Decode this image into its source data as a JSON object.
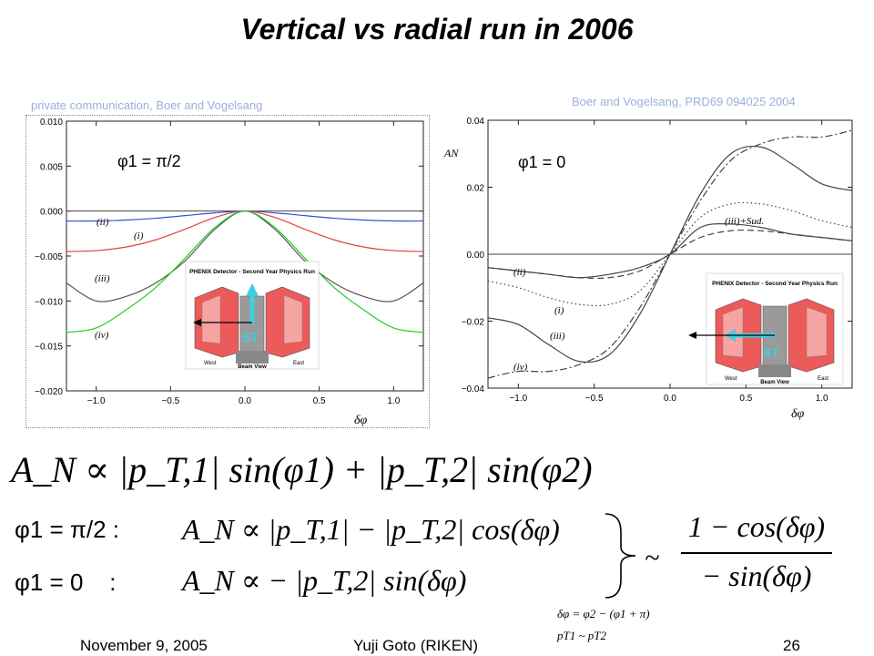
{
  "slide": {
    "title": "Vertical vs radial run in 2006",
    "footer": {
      "date": "November 9, 2005",
      "author": "Yuji Goto (RIKEN)",
      "page": "26"
    }
  },
  "left_panel": {
    "credit": "private communication, Boer and Vogelsang",
    "condition": "φ1 = π/2",
    "x_axis_label": "δφ",
    "curve_labels": [
      "(ii)",
      "(i)",
      "(iii)",
      "(iv)"
    ],
    "inset_title": "PHENIX Detector - Second Year Physics Run",
    "inset_caption": "Beam View",
    "inset_west": "West",
    "inset_east": "East",
    "spin_label": "ST"
  },
  "right_panel": {
    "credit": "Boer and Vogelsang, PRD69 094025 2004",
    "condition": "φ1 = 0",
    "y_axis_label": "AN",
    "x_axis_label": "δφ",
    "curve_labels": [
      "(ii)",
      "(i)",
      "(iii)",
      "(iv)",
      "(iii)+Sud."
    ],
    "inset_title": "PHENIX Detector - Second Year Physics Run",
    "inset_caption": "Beam View",
    "inset_west": "West",
    "inset_east": "East",
    "spin_label": "ST"
  },
  "equations": {
    "main": "A_N ∝ |p_T,1| sin(φ1) + |p_T,2| sin(φ2)",
    "case1_label": "φ1 = π/2 :",
    "case1": "A_N ∝ |p_T,1| − |p_T,2| cos(δφ)",
    "case2_label": "φ1 = 0    :",
    "case2": "A_N ∝ − |p_T,2| sin(δφ)",
    "ratio_numerator": "1 − cos(δφ)",
    "ratio_denominator": "− sin(δφ)",
    "note1": "δφ = φ2 − (φ1 + π)",
    "note2": "pT1 ~ pT2"
  },
  "chart_data": [
    {
      "type": "line",
      "title": "",
      "xlabel": "δφ",
      "ylabel": "",
      "xlim": [
        -1.2,
        1.2
      ],
      "ylim": [
        -0.02,
        0.01
      ],
      "x_ticks": [
        -1.0,
        -0.5,
        0.0,
        0.5,
        1.0
      ],
      "y_ticks": [
        0.01,
        0.005,
        0.0,
        -0.005,
        -0.01,
        -0.015,
        -0.02
      ],
      "grid": false,
      "series": [
        {
          "name": "(ii)",
          "color": "#3b4fd8",
          "x": [
            -1.2,
            -1.0,
            -0.8,
            -0.6,
            -0.4,
            -0.2,
            0,
            0.2,
            0.4,
            0.6,
            0.8,
            1.0,
            1.2
          ],
          "y": [
            -0.0011,
            -0.0011,
            -0.001,
            -0.0008,
            -0.0005,
            -0.0002,
            0,
            -0.0002,
            -0.0005,
            -0.0008,
            -0.001,
            -0.0011,
            -0.0011
          ]
        },
        {
          "name": "(i)",
          "color": "#e04040",
          "x": [
            -1.2,
            -1.0,
            -0.8,
            -0.6,
            -0.4,
            -0.2,
            0,
            0.2,
            0.4,
            0.6,
            0.8,
            1.0,
            1.2
          ],
          "y": [
            -0.0045,
            -0.0044,
            -0.004,
            -0.0032,
            -0.002,
            -0.0007,
            0,
            -0.0007,
            -0.002,
            -0.0032,
            -0.004,
            -0.0044,
            -0.0045
          ]
        },
        {
          "name": "(iii)",
          "color": "#555555",
          "x": [
            -1.2,
            -1.0,
            -0.8,
            -0.6,
            -0.4,
            -0.2,
            0,
            0.2,
            0.4,
            0.6,
            0.8,
            1.0,
            1.2
          ],
          "y": [
            -0.008,
            -0.01,
            -0.0095,
            -0.008,
            -0.0055,
            -0.002,
            0,
            -0.002,
            -0.0055,
            -0.008,
            -0.0095,
            -0.01,
            -0.008
          ]
        },
        {
          "name": "(iv)",
          "color": "#22cc22",
          "x": [
            -1.2,
            -1.0,
            -0.8,
            -0.6,
            -0.4,
            -0.2,
            0,
            0.2,
            0.4,
            0.6,
            0.8,
            1.0,
            1.2
          ],
          "y": [
            -0.0135,
            -0.013,
            -0.011,
            -0.0085,
            -0.0052,
            -0.0018,
            0,
            -0.0018,
            -0.0052,
            -0.0085,
            -0.011,
            -0.013,
            -0.0135
          ]
        }
      ]
    },
    {
      "type": "line",
      "title": "",
      "xlabel": "δφ",
      "ylabel": "AN",
      "xlim": [
        -1.2,
        1.2
      ],
      "ylim": [
        -0.04,
        0.04
      ],
      "x_ticks": [
        -1.0,
        -0.5,
        0.0,
        0.5,
        1.0
      ],
      "y_ticks": [
        0.04,
        0.02,
        0.0,
        -0.02,
        -0.04
      ],
      "grid": false,
      "series": [
        {
          "name": "(ii)",
          "style": "dashed",
          "x": [
            -1.2,
            -1.0,
            -0.8,
            -0.6,
            -0.4,
            -0.2,
            0,
            0.2,
            0.4,
            0.6,
            0.8,
            1.0,
            1.2
          ],
          "y": [
            -0.004,
            -0.005,
            -0.006,
            -0.007,
            -0.007,
            -0.005,
            0,
            0.005,
            0.007,
            0.007,
            0.006,
            0.005,
            0.004
          ]
        },
        {
          "name": "(i)",
          "style": "dotted",
          "x": [
            -1.2,
            -1.0,
            -0.8,
            -0.6,
            -0.4,
            -0.2,
            0,
            0.2,
            0.4,
            0.6,
            0.8,
            1.0,
            1.2
          ],
          "y": [
            -0.008,
            -0.01,
            -0.013,
            -0.015,
            -0.015,
            -0.011,
            0,
            0.011,
            0.015,
            0.015,
            0.013,
            0.01,
            0.008
          ]
        },
        {
          "name": "(iii)",
          "style": "solid",
          "x": [
            -1.2,
            -1.0,
            -0.8,
            -0.6,
            -0.4,
            -0.2,
            0,
            0.2,
            0.4,
            0.6,
            0.8,
            1.0,
            1.2
          ],
          "y": [
            -0.019,
            -0.021,
            -0.027,
            -0.032,
            -0.03,
            -0.018,
            0,
            0.018,
            0.03,
            0.032,
            0.027,
            0.021,
            0.019
          ]
        },
        {
          "name": "(iv)",
          "style": "dashdot",
          "x": [
            -1.2,
            -1.0,
            -0.8,
            -0.6,
            -0.4,
            -0.2,
            0,
            0.2,
            0.4,
            0.6,
            0.8,
            1.0,
            1.2
          ],
          "y": [
            -0.037,
            -0.035,
            -0.035,
            -0.033,
            -0.028,
            -0.016,
            0,
            0.016,
            0.028,
            0.033,
            0.035,
            0.035,
            0.037
          ]
        },
        {
          "name": "(iii)+Sud.",
          "style": "solid",
          "x": [
            -1.2,
            -1.0,
            -0.8,
            -0.6,
            -0.4,
            -0.2,
            0,
            0.2,
            0.4,
            0.6,
            0.8,
            1.0,
            1.2
          ],
          "y": [
            -0.004,
            -0.005,
            -0.006,
            -0.007,
            -0.006,
            -0.004,
            0,
            0.008,
            0.009,
            0.008,
            0.006,
            0.005,
            0.004
          ]
        }
      ]
    }
  ]
}
